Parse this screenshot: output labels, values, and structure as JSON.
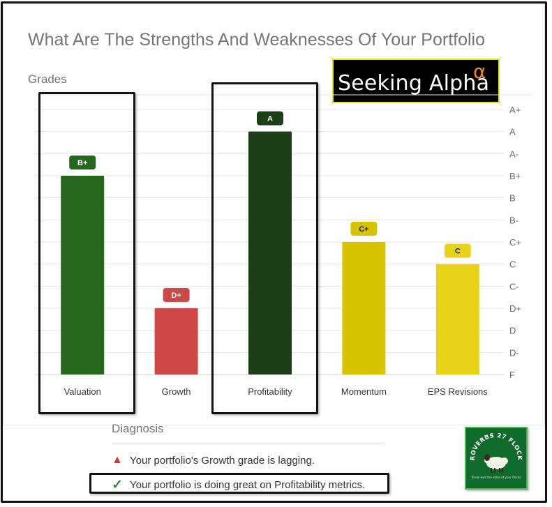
{
  "title": "What Are The Strengths And Weaknesses Of Your Portfolio",
  "grades_label": "Grades",
  "logo": {
    "text": "Seeking Alpha",
    "superscript": "α"
  },
  "chart_data": {
    "type": "bar",
    "categories": [
      "Valuation",
      "Growth",
      "Profitability",
      "Momentum",
      "EPS Revisions"
    ],
    "grades": [
      "B+",
      "D+",
      "A",
      "C+",
      "C"
    ],
    "grade_scale": [
      "F",
      "D-",
      "D",
      "D+",
      "C-",
      "C",
      "C+",
      "B-",
      "B",
      "B+",
      "A-",
      "A",
      "A+"
    ],
    "values": [
      9,
      3,
      11,
      6,
      5
    ],
    "ylim": [
      0,
      12
    ],
    "grid": true,
    "y_axis_side": "right",
    "colors": [
      "#27661f",
      "#cf4848",
      "#1c3f18",
      "#d7c300",
      "#e7d41a"
    ],
    "highlighted_categories": [
      "Valuation",
      "Profitability"
    ]
  },
  "diagnosis": {
    "title": "Diagnosis",
    "items": [
      {
        "icon": "warning-icon",
        "text": "Your portfolio's Growth grade is lagging."
      },
      {
        "icon": "check-icon",
        "text": "Your portfolio is doing great on Profitability metrics."
      }
    ]
  },
  "stamp": {
    "text": "PROVERBS 27 FLOCKS",
    "tagline": "Know well the state of your flocks"
  }
}
